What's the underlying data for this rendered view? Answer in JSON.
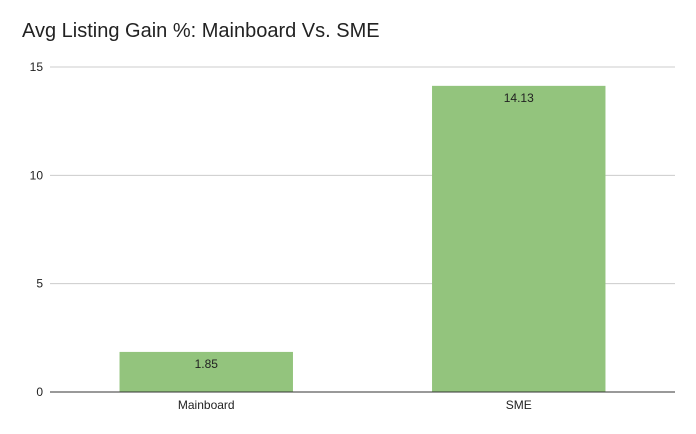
{
  "chart_data": {
    "type": "bar",
    "title": "Avg Listing Gain %: Mainboard Vs. SME",
    "categories": [
      "Mainboard",
      "SME"
    ],
    "series": [
      {
        "values": [
          1.85,
          14.13
        ],
        "data_labels": [
          "1.85",
          "14.13"
        ],
        "color": "#93c47d"
      }
    ],
    "xlabel": "",
    "ylabel": "",
    "ylim": [
      0,
      15
    ],
    "yticks": [
      0,
      5,
      10,
      15
    ],
    "grid": true,
    "legend": "none",
    "colors": {
      "bar": "#93c47d",
      "grid": "#cccccc",
      "axis": "#333333",
      "text": "#222222"
    }
  }
}
